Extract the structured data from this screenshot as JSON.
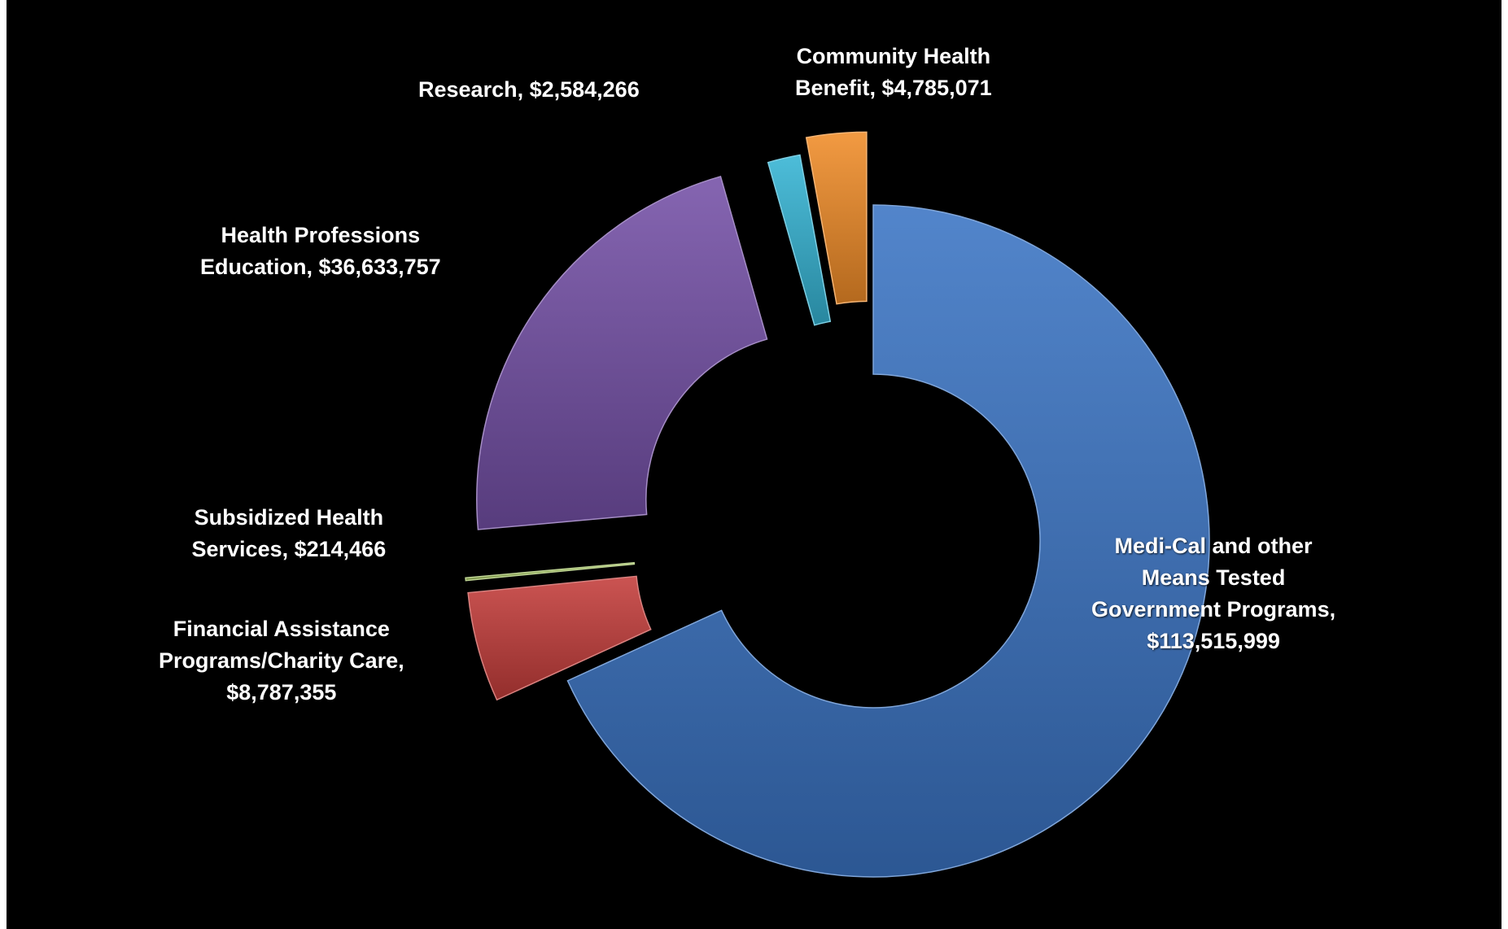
{
  "chart_data": {
    "type": "pie",
    "variant": "donut",
    "exploded": true,
    "categories": [
      "Medi-Cal and other Means Tested Government Programs",
      "Financial Assistance Programs/Charity Care",
      "Subsidized Health Services",
      "Health Professions Education",
      "Research",
      "Community Health Benefit"
    ],
    "values": [
      113515999,
      8787355,
      214466,
      36633757,
      2584266,
      4785071
    ],
    "colors": [
      "#3a74c4",
      "#c43d3a",
      "#9bbb59",
      "#7450a6",
      "#35b4d4",
      "#f08c28"
    ],
    "labels": [
      {
        "lines": [
          "Medi-Cal and other",
          "Means Tested",
          "Government Programs,",
          "$113,515,999"
        ]
      },
      {
        "lines": [
          "Financial Assistance",
          "Programs/Charity Care,",
          "$8,787,355"
        ]
      },
      {
        "lines": [
          "Subsidized Health",
          "Services, $214,466"
        ]
      },
      {
        "lines": [
          "Health Professions",
          "Education, $36,633,757"
        ]
      },
      {
        "lines": [
          "Research, $2,584,266"
        ]
      },
      {
        "lines": [
          "Community Health",
          "Benefit, $4,785,071"
        ]
      }
    ],
    "title": "",
    "legend": "none",
    "background": "#000000"
  }
}
